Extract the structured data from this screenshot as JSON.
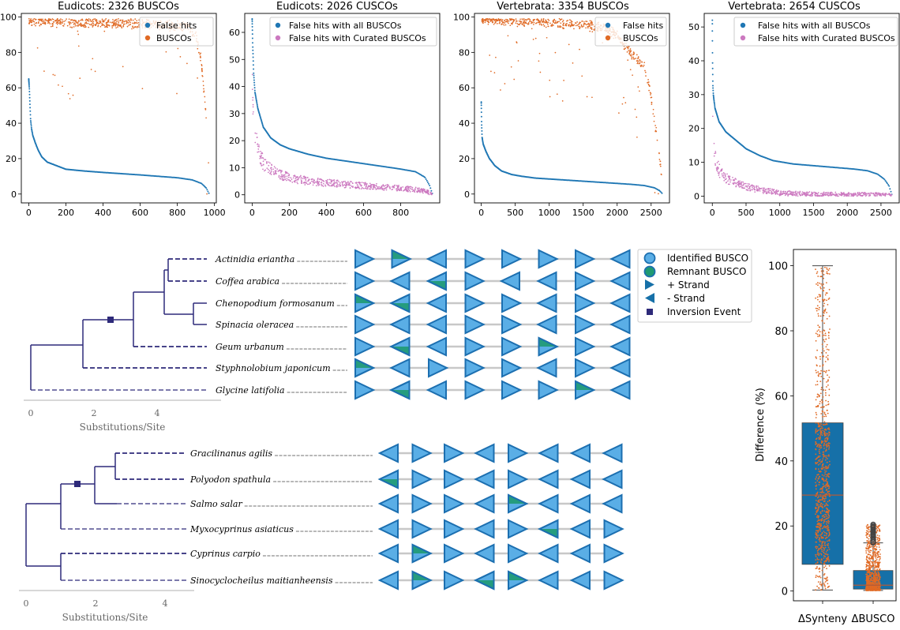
{
  "colors": {
    "blue": "#1f77b4",
    "orange": "#e06a25",
    "pink": "#cc79c0",
    "tree": "#2e2a7a",
    "tri_fill": "#5aaee6",
    "tri_stroke": "#1c6fb0",
    "remnant_fill": "#1f9a72",
    "track": "#c8c8c8",
    "box_fill": "#1670a8"
  },
  "chart_data": [
    {
      "type": "scatter",
      "title": "Eudicots: 2326 BUSCOs",
      "xlim": [
        -40,
        1010
      ],
      "ylim": [
        -5,
        102
      ],
      "xticks": [
        0,
        200,
        400,
        600,
        800,
        1000
      ],
      "yticks": [
        0,
        20,
        40,
        60,
        80,
        100
      ],
      "legend": "top-right",
      "series": [
        {
          "name": "False hits",
          "role": "curve",
          "color": "blue",
          "points": [
            [
              0,
              65
            ],
            [
              3,
              60
            ],
            [
              6,
              52
            ],
            [
              10,
              42
            ],
            [
              15,
              37
            ],
            [
              22,
              33
            ],
            [
              35,
              29
            ],
            [
              50,
              25
            ],
            [
              70,
              21
            ],
            [
              100,
              18
            ],
            [
              150,
              16
            ],
            [
              200,
              14
            ],
            [
              300,
              13
            ],
            [
              400,
              12.2
            ],
            [
              500,
              11.5
            ],
            [
              600,
              10.8
            ],
            [
              700,
              10
            ],
            [
              800,
              9.2
            ],
            [
              880,
              8
            ],
            [
              930,
              6
            ],
            [
              955,
              3.5
            ],
            [
              970,
              0.5
            ]
          ]
        },
        {
          "name": "BUSCOs",
          "role": "band",
          "color": "orange",
          "points": [
            [
              0,
              98
            ],
            [
              300,
              97
            ],
            [
              600,
              96.5
            ],
            [
              850,
              95
            ],
            [
              900,
              90
            ],
            [
              930,
              75
            ],
            [
              950,
              50
            ],
            [
              960,
              35
            ],
            [
              970,
              15
            ],
            [
              975,
              3
            ]
          ]
        }
      ]
    },
    {
      "type": "scatter",
      "title": "Eudicots: 2026 CUSCOs",
      "xlim": [
        -40,
        1010
      ],
      "ylim": [
        -3,
        67
      ],
      "xticks": [
        0,
        200,
        400,
        600,
        800
      ],
      "yticks": [
        0,
        10,
        20,
        30,
        40,
        50,
        60
      ],
      "legend": "top-right",
      "series": [
        {
          "name": "False hits with all BUSCOs",
          "role": "curve",
          "color": "blue",
          "points": [
            [
              0,
              65
            ],
            [
              3,
              55
            ],
            [
              8,
              45
            ],
            [
              15,
              38
            ],
            [
              30,
              32
            ],
            [
              60,
              25
            ],
            [
              100,
              21
            ],
            [
              150,
              18.5
            ],
            [
              200,
              17
            ],
            [
              300,
              15
            ],
            [
              400,
              13.5
            ],
            [
              500,
              12.5
            ],
            [
              600,
              11.5
            ],
            [
              700,
              10.5
            ],
            [
              800,
              9.5
            ],
            [
              880,
              8.5
            ],
            [
              930,
              6.5
            ],
            [
              955,
              3.5
            ],
            [
              970,
              0.5
            ]
          ]
        },
        {
          "name": "False hits with Curated BUSCOs",
          "role": "band",
          "color": "pink",
          "points": [
            [
              0,
              40
            ],
            [
              5,
              33
            ],
            [
              15,
              24
            ],
            [
              30,
              17
            ],
            [
              60,
              12
            ],
            [
              100,
              9.5
            ],
            [
              150,
              7.5
            ],
            [
              200,
              6.5
            ],
            [
              300,
              5.2
            ],
            [
              400,
              4.5
            ],
            [
              500,
              4
            ],
            [
              600,
              3.5
            ],
            [
              700,
              3
            ],
            [
              800,
              2.5
            ],
            [
              900,
              1.8
            ],
            [
              950,
              1
            ],
            [
              970,
              0
            ]
          ]
        }
      ]
    },
    {
      "type": "scatter",
      "title": "Vertebrata: 3354 BUSCOs",
      "xlim": [
        -100,
        2770
      ],
      "ylim": [
        -5,
        102
      ],
      "xticks": [
        0,
        500,
        1000,
        1500,
        2000,
        2500
      ],
      "yticks": [
        0,
        20,
        40,
        60,
        80,
        100
      ],
      "legend": "top-right",
      "series": [
        {
          "name": "False hits",
          "role": "curve",
          "color": "blue",
          "points": [
            [
              0,
              52
            ],
            [
              5,
              40
            ],
            [
              12,
              32
            ],
            [
              30,
              28
            ],
            [
              70,
              24
            ],
            [
              120,
              20
            ],
            [
              200,
              16
            ],
            [
              300,
              13
            ],
            [
              450,
              11
            ],
            [
              600,
              10
            ],
            [
              800,
              9
            ],
            [
              1000,
              8.5
            ],
            [
              1200,
              8
            ],
            [
              1400,
              7.5
            ],
            [
              1600,
              7
            ],
            [
              1800,
              6.5
            ],
            [
              2000,
              6
            ],
            [
              2200,
              5.5
            ],
            [
              2400,
              4.8
            ],
            [
              2550,
              3.5
            ],
            [
              2620,
              2
            ],
            [
              2660,
              0.5
            ]
          ]
        },
        {
          "name": "BUSCOs",
          "role": "band",
          "color": "orange",
          "points": [
            [
              0,
              99
            ],
            [
              500,
              98
            ],
            [
              1000,
              97
            ],
            [
              1500,
              96
            ],
            [
              1800,
              94
            ],
            [
              2000,
              90
            ],
            [
              2100,
              85
            ],
            [
              2200,
              80
            ],
            [
              2300,
              76
            ],
            [
              2400,
              72
            ],
            [
              2450,
              65
            ],
            [
              2500,
              55
            ],
            [
              2550,
              42
            ],
            [
              2600,
              28
            ],
            [
              2640,
              15
            ],
            [
              2660,
              5
            ]
          ]
        }
      ]
    },
    {
      "type": "scatter",
      "title": "Vertebrata: 2654 CUSCOs",
      "xlim": [
        -120,
        2770
      ],
      "ylim": [
        -2,
        54
      ],
      "xticks": [
        0,
        500,
        1000,
        1500,
        2000,
        2500
      ],
      "yticks": [
        0,
        10,
        20,
        30,
        40,
        50
      ],
      "legend": "top-right",
      "series": [
        {
          "name": "False hits with all BUSCOs",
          "role": "curve",
          "color": "blue",
          "points": [
            [
              0,
              52
            ],
            [
              3,
              40
            ],
            [
              8,
              33
            ],
            [
              15,
              30
            ],
            [
              40,
              26
            ],
            [
              100,
              22
            ],
            [
              200,
              19
            ],
            [
              350,
              16.5
            ],
            [
              500,
              14
            ],
            [
              700,
              12
            ],
            [
              900,
              10.5
            ],
            [
              1200,
              9.5
            ],
            [
              1500,
              9
            ],
            [
              1800,
              8.5
            ],
            [
              2100,
              8
            ],
            [
              2300,
              7.5
            ],
            [
              2450,
              6.5
            ],
            [
              2550,
              5
            ],
            [
              2620,
              3
            ],
            [
              2660,
              0.5
            ]
          ]
        },
        {
          "name": "False hits with Curated BUSCOs",
          "role": "band",
          "color": "pink",
          "points": [
            [
              0,
              24
            ],
            [
              20,
              16
            ],
            [
              60,
              10
            ],
            [
              120,
              7
            ],
            [
              200,
              5.5
            ],
            [
              300,
              4.5
            ],
            [
              500,
              3
            ],
            [
              700,
              2
            ],
            [
              1000,
              1
            ],
            [
              1500,
              0.6
            ],
            [
              2000,
              0.5
            ],
            [
              2500,
              0.4
            ],
            [
              2660,
              0
            ]
          ]
        }
      ]
    },
    {
      "type": "box",
      "ylabel": "Difference (%)",
      "ylim": [
        -3,
        105
      ],
      "yticks": [
        0,
        20,
        40,
        60,
        80,
        100
      ],
      "categories": [
        "ΔSynteny",
        "ΔBUSCO"
      ],
      "boxes": [
        {
          "min": 0.3,
          "q1": 8.2,
          "median": 29.5,
          "q3": 51.7,
          "max": 100,
          "points_max": 100
        },
        {
          "min": 0.2,
          "q1": 0.6,
          "median": 1.8,
          "q3": 6.3,
          "max": 14.8,
          "points_max": 20.5
        }
      ]
    }
  ],
  "labels": {
    "tree_xlabel": "Substitutions/Site"
  },
  "legend_synteny": {
    "identified": "Identified BUSCO",
    "remnant": "Remnant BUSCO",
    "plus": "+ Strand",
    "minus": "- Strand",
    "inversion": "Inversion Event"
  },
  "tree1": {
    "taxa": [
      "Actinidia eriantha",
      "Coffea arabica",
      "Chenopodium formosanum",
      "Spinacia oleracea",
      "Geum urbanum",
      "Styphnolobium japonicum",
      "Glycine latifolia"
    ],
    "ticks": [
      "0",
      "2",
      "4"
    ],
    "genes": [
      [
        "R",
        "RG",
        "L",
        "R",
        "R",
        "R",
        "R",
        "L"
      ],
      [
        "R",
        "L",
        "LG",
        "R",
        "L",
        "L",
        "R",
        "L"
      ],
      [
        "RG",
        "LG",
        "L",
        "R",
        "R",
        "L",
        "R",
        "L"
      ],
      [
        "R",
        "L",
        "L",
        "R",
        "R",
        "L",
        "R",
        "L"
      ],
      [
        "R",
        "LG",
        "L",
        "R",
        "R",
        "RG",
        "R",
        "L"
      ],
      [
        "RG",
        "L",
        "R",
        "R",
        "R",
        "L",
        "R",
        "L"
      ],
      [
        "R",
        "LG",
        "L",
        "R",
        "R",
        "R",
        "RG",
        "L"
      ]
    ]
  },
  "tree2": {
    "taxa": [
      "Gracilinanus agilis",
      "Polyodon spathula",
      "Salmo salar",
      "Myxocyprinus asiaticus",
      "Cyprinus carpio",
      "Sinocyclocheilus maitianheensis"
    ],
    "ticks": [
      "0",
      "2",
      "4"
    ],
    "genes": [
      [
        "L",
        "R",
        "R",
        "L",
        "R",
        "L",
        "L",
        "L"
      ],
      [
        "LG",
        "R",
        "R",
        "L",
        "R",
        "L",
        "L",
        "L"
      ],
      [
        "L",
        "R",
        "R",
        "L",
        "RG",
        "L",
        "L",
        "L"
      ],
      [
        "L",
        "R",
        "R",
        "L",
        "R",
        "LG",
        "L",
        "R"
      ],
      [
        "L",
        "RG",
        "R",
        "L",
        "R",
        "L",
        "L",
        "R"
      ],
      [
        "L",
        "RG",
        "R",
        "LG",
        "RG",
        "L",
        "L",
        "R"
      ]
    ]
  }
}
